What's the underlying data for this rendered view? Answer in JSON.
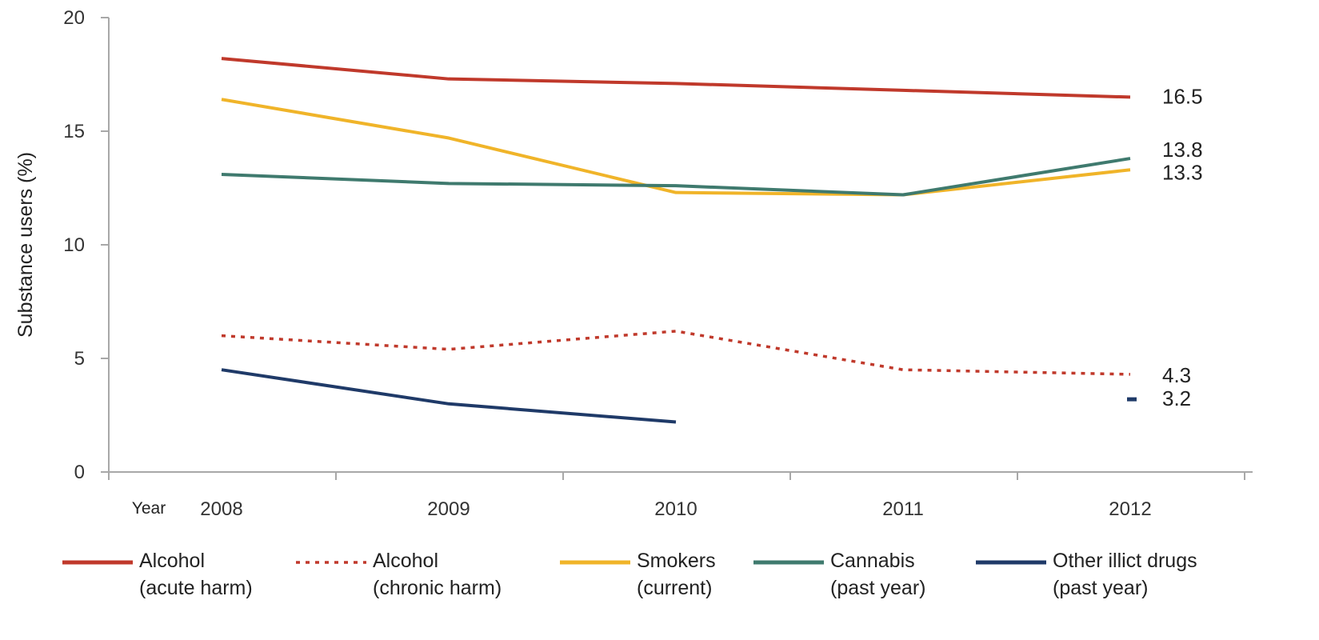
{
  "chart_data": {
    "type": "line",
    "title": "",
    "xlabel": "Year",
    "ylabel": "Substance users (%)",
    "ylim": [
      0,
      20
    ],
    "yticks": [
      0,
      5,
      10,
      15,
      20
    ],
    "categories": [
      "2008",
      "2009",
      "2010",
      "2011",
      "2012"
    ],
    "grid": false,
    "legend_position": "bottom",
    "series": [
      {
        "name": "Alcohol (acute harm)",
        "legend_lines": [
          "Alcohol",
          "(acute harm)"
        ],
        "color": "#c0392b",
        "style": "solid",
        "values": [
          18.2,
          17.3,
          17.1,
          16.8,
          16.5
        ],
        "end_label": "16.5"
      },
      {
        "name": "Alcohol (chronic harm)",
        "legend_lines": [
          "Alcohol",
          "(chronic harm)"
        ],
        "color": "#c0392b",
        "style": "dotted",
        "values": [
          6.0,
          5.4,
          6.2,
          4.5,
          4.3
        ],
        "end_label": "4.3"
      },
      {
        "name": "Smokers (current)",
        "legend_lines": [
          "Smokers",
          "(current)"
        ],
        "color": "#f0b429",
        "style": "solid",
        "values": [
          16.4,
          14.7,
          12.3,
          12.2,
          13.3
        ],
        "end_label": "13.3"
      },
      {
        "name": "Cannabis (past year)",
        "legend_lines": [
          "Cannabis",
          "(past year)"
        ],
        "color": "#3f7a6e",
        "style": "solid",
        "values": [
          13.1,
          12.7,
          12.6,
          12.2,
          13.8
        ],
        "end_label": "13.8"
      },
      {
        "name": "Other illict drugs (past year)",
        "legend_lines": [
          "Other illict drugs",
          "(past year)"
        ],
        "color": "#1f3a68",
        "style": "solid",
        "values": [
          4.5,
          3.0,
          2.2,
          null,
          3.2
        ],
        "end_label": "3.2"
      }
    ]
  }
}
